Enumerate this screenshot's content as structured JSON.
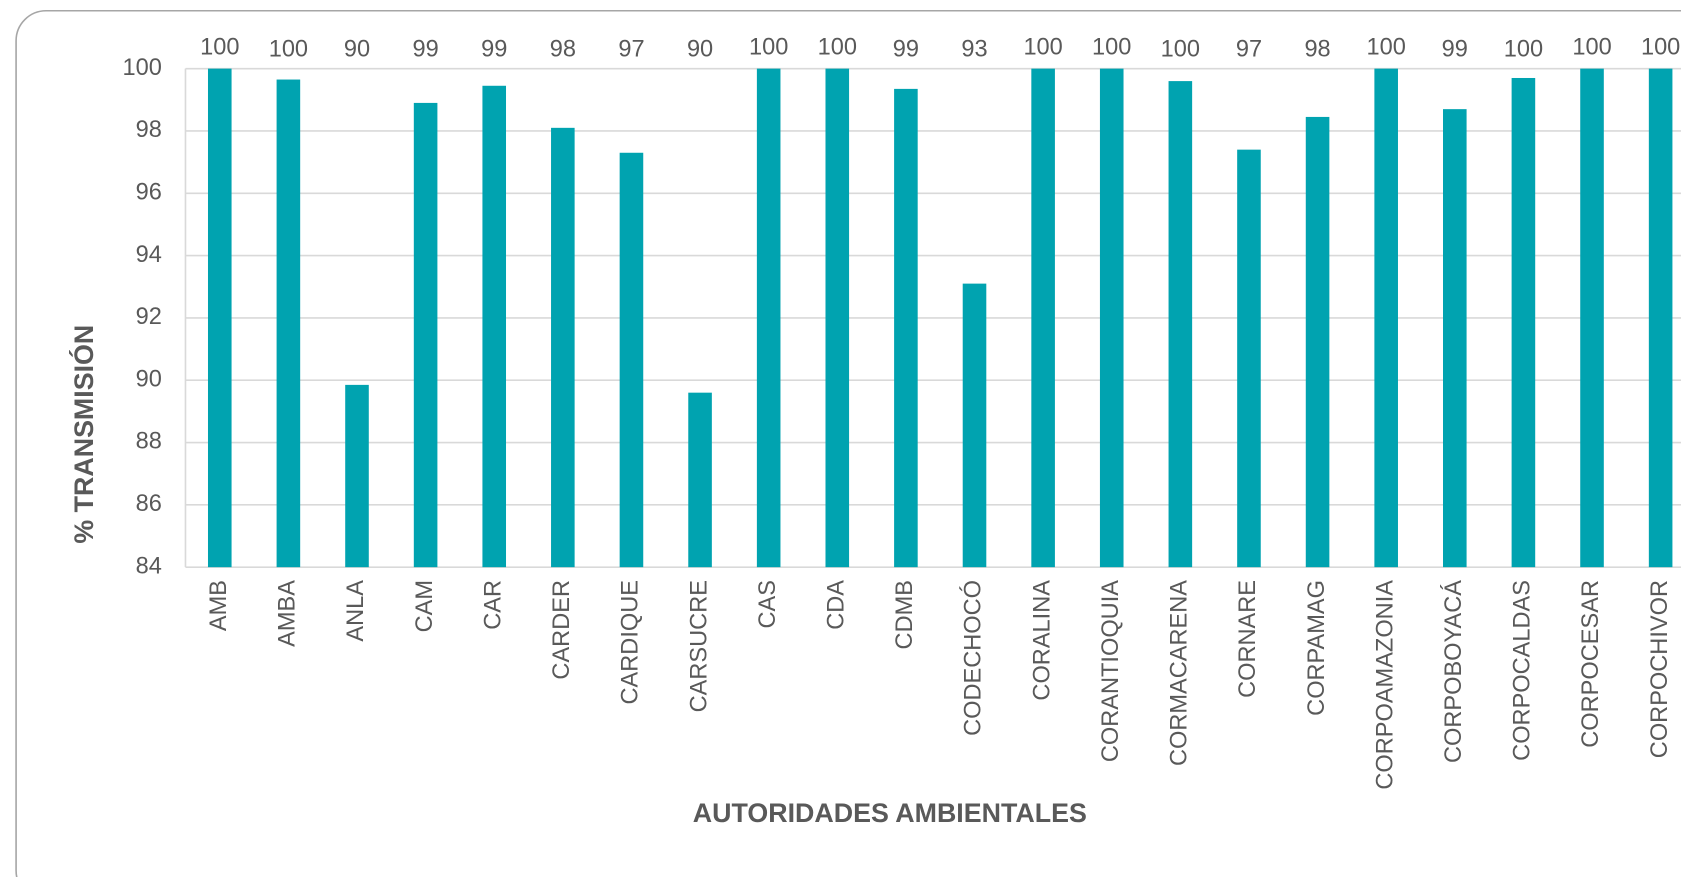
{
  "chart_data": {
    "type": "bar",
    "x_label": "AUTORIDADES AMBIENTALES",
    "y_label": "% TRANSMISIÓN",
    "categories": [
      "AMB",
      "AMBA",
      "ANLA",
      "CAM",
      "CAR",
      "CARDER",
      "CARDIQUE",
      "CARSUCRE",
      "CAS",
      "CDA",
      "CDMB",
      "CODECHOCÓ",
      "CORALINA",
      "CORANTIOQUIA",
      "CORMACARENA",
      "CORNARE",
      "CORPAMAG",
      "CORPOAMAZONIA",
      "CORPOBOYACÁ",
      "CORPOCALDAS",
      "CORPOCESAR",
      "CORPOCHIVOR"
    ],
    "values": [
      100,
      99.65,
      89.85,
      98.9,
      99.45,
      98.1,
      97.3,
      89.6,
      100,
      100,
      99.35,
      93.1,
      100,
      100,
      99.6,
      97.4,
      98.45,
      100,
      98.7,
      99.7,
      100,
      100
    ],
    "value_labels": [
      "100",
      "100",
      "90",
      "99",
      "99",
      "98",
      "97",
      "90",
      "100",
      "100",
      "99",
      "93",
      "100",
      "100",
      "100",
      "97",
      "98",
      "100",
      "99",
      "100",
      "100",
      "100"
    ],
    "color": "#00a3b0",
    "ylim": [
      84,
      100
    ],
    "yticks": [
      84,
      86,
      88,
      90,
      92,
      94,
      96,
      98,
      100
    ],
    "grid": true
  }
}
